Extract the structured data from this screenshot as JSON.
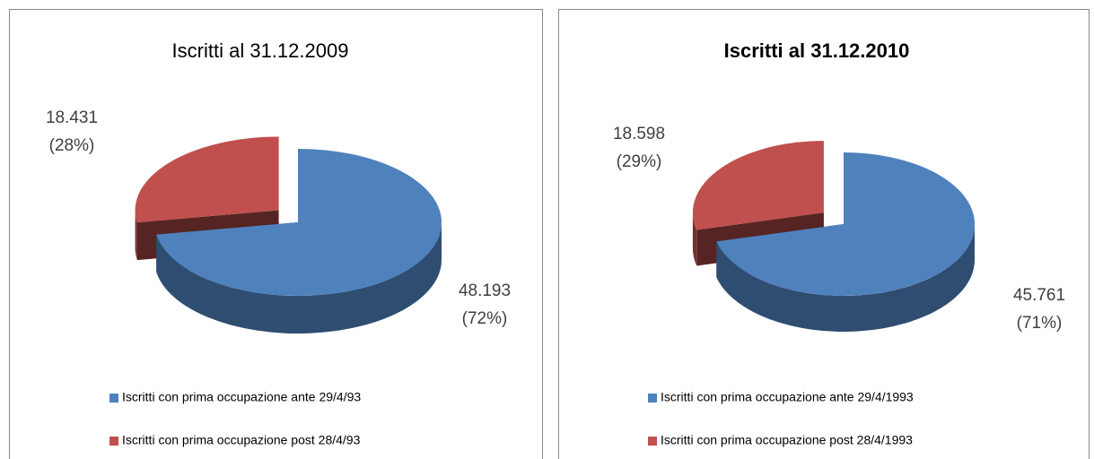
{
  "chart_data": [
    {
      "type": "pie3d",
      "title": "Iscritti al 31.12.2009",
      "categories": [
        "Iscritti con prima occupazione ante 29/4/93",
        "Iscritti con prima occupazione post 28/4/93"
      ],
      "values": [
        48193,
        18431
      ],
      "value_labels": [
        "48.193",
        "18.431"
      ],
      "percentages": [
        72,
        28
      ],
      "percentage_labels": [
        "(72%)",
        "(28%)"
      ],
      "colors": [
        "#4f81bd",
        "#c0504d"
      ],
      "legend": "bottom"
    },
    {
      "type": "pie3d",
      "title": "Iscritti al 31.12.2010",
      "categories": [
        "Iscritti con prima occupazione ante 29/4/1993",
        "Iscritti con prima occupazione post 28/4/1993"
      ],
      "values": [
        45761,
        18598
      ],
      "value_labels": [
        "45.761",
        "18.598"
      ],
      "percentages": [
        71,
        29
      ],
      "percentage_labels": [
        "(71%)",
        "(29%)"
      ],
      "colors": [
        "#4f81bd",
        "#c0504d"
      ],
      "legend": "bottom"
    }
  ]
}
